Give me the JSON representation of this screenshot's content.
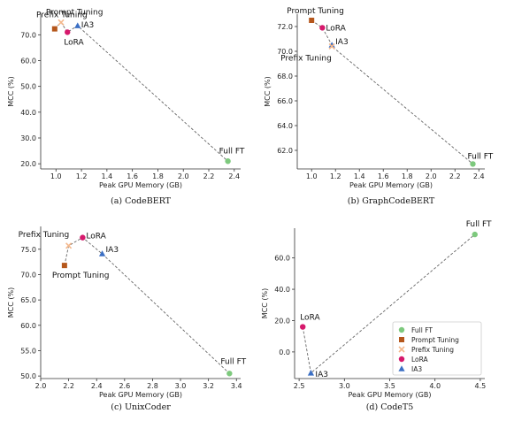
{
  "styles": {
    "Full FT": {
      "color": "#7dc97d",
      "shape": "circle"
    },
    "Prompt Tuning": {
      "color": "#b5571c",
      "shape": "square"
    },
    "Prefix Tuning": {
      "color": "#f4b88c",
      "shape": "x"
    },
    "LoRA": {
      "color": "#d6196c",
      "shape": "circle"
    },
    "IA3": {
      "color": "#3b6fc4",
      "shape": "triangle"
    },
    "line_color": "#666666"
  },
  "chart_data": [
    {
      "type": "scatter",
      "caption": "(a) CodeBERT",
      "xlabel": "Peak GPU Memory (GB)",
      "ylabel": "MCC (%)",
      "xlim": [
        0.88,
        2.45
      ],
      "ylim": [
        18,
        78
      ],
      "xticks": [
        1.0,
        1.2,
        1.4,
        1.6,
        1.8,
        2.0,
        2.2,
        2.4
      ],
      "xticklabels": [
        "1.0",
        "1.2",
        "1.4",
        "1.6",
        "1.8",
        "2.0",
        "2.2",
        "2.4"
      ],
      "yticks": [
        20,
        30,
        40,
        50,
        60,
        70
      ],
      "yticklabels": [
        "20.0",
        "30.0",
        "40.0",
        "50.0",
        "60.0",
        "70.0"
      ],
      "points": [
        {
          "name": "Prompt Tuning",
          "x": 0.99,
          "y": 72.3,
          "label": "Prompt Tuning"
        },
        {
          "name": "Prefix Tuning",
          "x": 1.04,
          "y": 74.8,
          "label": "Prefix Tuning"
        },
        {
          "name": "LoRA",
          "x": 1.09,
          "y": 71.0,
          "label": "LoRA"
        },
        {
          "name": "IA3",
          "x": 1.17,
          "y": 73.5,
          "label": "IA3"
        },
        {
          "name": "Full FT",
          "x": 2.35,
          "y": 21.0,
          "label": "Full FT"
        }
      ],
      "path": [
        "Prompt Tuning",
        "Prefix Tuning",
        "LoRA",
        "IA3",
        "Full FT"
      ]
    },
    {
      "type": "scatter",
      "caption": "(b) GraphCodeBERT",
      "xlabel": "Peak GPU Memory (GB)",
      "ylabel": "MCC (%)",
      "xlim": [
        0.88,
        2.45
      ],
      "ylim": [
        60.5,
        73.0
      ],
      "xticks": [
        1.0,
        1.2,
        1.4,
        1.6,
        1.8,
        2.0,
        2.2,
        2.4
      ],
      "xticklabels": [
        "1.0",
        "1.2",
        "1.4",
        "1.6",
        "1.8",
        "2.0",
        "2.2",
        "2.4"
      ],
      "yticks": [
        62,
        64,
        66,
        68,
        70,
        72
      ],
      "yticklabels": [
        "62.0",
        "64.0",
        "66.0",
        "68.0",
        "70.0",
        "72.0"
      ],
      "points": [
        {
          "name": "Prompt Tuning",
          "x": 1.0,
          "y": 72.5,
          "label": "Prompt Tuning"
        },
        {
          "name": "LoRA",
          "x": 1.09,
          "y": 71.9,
          "label": "LoRA"
        },
        {
          "name": "IA3",
          "x": 1.17,
          "y": 70.5,
          "label": "IA3"
        },
        {
          "name": "Prefix Tuning",
          "x": 1.17,
          "y": 70.4,
          "label": "Prefix Tuning"
        },
        {
          "name": "Full FT",
          "x": 2.35,
          "y": 60.9,
          "label": "Full FT"
        }
      ],
      "path": [
        "Prompt Tuning",
        "LoRA",
        "IA3",
        "Prefix Tuning",
        "Full FT"
      ]
    },
    {
      "type": "scatter",
      "caption": "(c) UnixCoder",
      "xlabel": "Peak GPU Memory (GB)",
      "ylabel": "MCC (%)",
      "xlim": [
        2.0,
        3.43
      ],
      "ylim": [
        49.5,
        79.5
      ],
      "xticks": [
        2.0,
        2.2,
        2.4,
        2.6,
        2.8,
        3.0,
        3.2,
        3.4
      ],
      "xticklabels": [
        "2.0",
        "2.2",
        "2.4",
        "2.6",
        "2.8",
        "3.0",
        "3.2",
        "3.4"
      ],
      "yticks": [
        50,
        55,
        60,
        65,
        70,
        75
      ],
      "yticklabels": [
        "50.0",
        "55.0",
        "60.0",
        "65.0",
        "70.0",
        "75.0"
      ],
      "points": [
        {
          "name": "Prompt Tuning",
          "x": 2.17,
          "y": 71.8,
          "label": "Prompt Tuning"
        },
        {
          "name": "Prefix Tuning",
          "x": 2.2,
          "y": 75.7,
          "label": "Prefix Tuning"
        },
        {
          "name": "LoRA",
          "x": 2.3,
          "y": 77.3,
          "label": "LoRA"
        },
        {
          "name": "IA3",
          "x": 2.44,
          "y": 74.1,
          "label": "IA3"
        },
        {
          "name": "Full FT",
          "x": 3.35,
          "y": 50.5,
          "label": "Full FT"
        }
      ],
      "path": [
        "Prompt Tuning",
        "Prefix Tuning",
        "LoRA",
        "IA3",
        "Full FT"
      ]
    },
    {
      "type": "scatter",
      "caption": "(d) CodeT5",
      "xlabel": "Peak GPU Memory (GB)",
      "ylabel": "MCC (%)",
      "xlim": [
        2.45,
        4.55
      ],
      "ylim": [
        -17,
        79
      ],
      "xticks": [
        2.5,
        3.0,
        3.5,
        4.0,
        4.5
      ],
      "xticklabels": [
        "2.5",
        "3.0",
        "3.5",
        "4.0",
        "4.5"
      ],
      "yticks": [
        0,
        20,
        40,
        60
      ],
      "yticklabels": [
        "0.0",
        "20.0",
        "40.0",
        "60.0"
      ],
      "points": [
        {
          "name": "LoRA",
          "x": 2.54,
          "y": 16.0,
          "label": "LoRA"
        },
        {
          "name": "IA3",
          "x": 2.63,
          "y": -13.5,
          "label": "IA3"
        },
        {
          "name": "Full FT",
          "x": 4.44,
          "y": 75.0,
          "label": "Full FT"
        }
      ],
      "path": [
        "LoRA",
        "IA3",
        "Full FT"
      ],
      "legend": {
        "placement": "bottom-right",
        "entries": [
          "Full FT",
          "Prompt Tuning",
          "Prefix Tuning",
          "LoRA",
          "IA3"
        ]
      }
    }
  ]
}
